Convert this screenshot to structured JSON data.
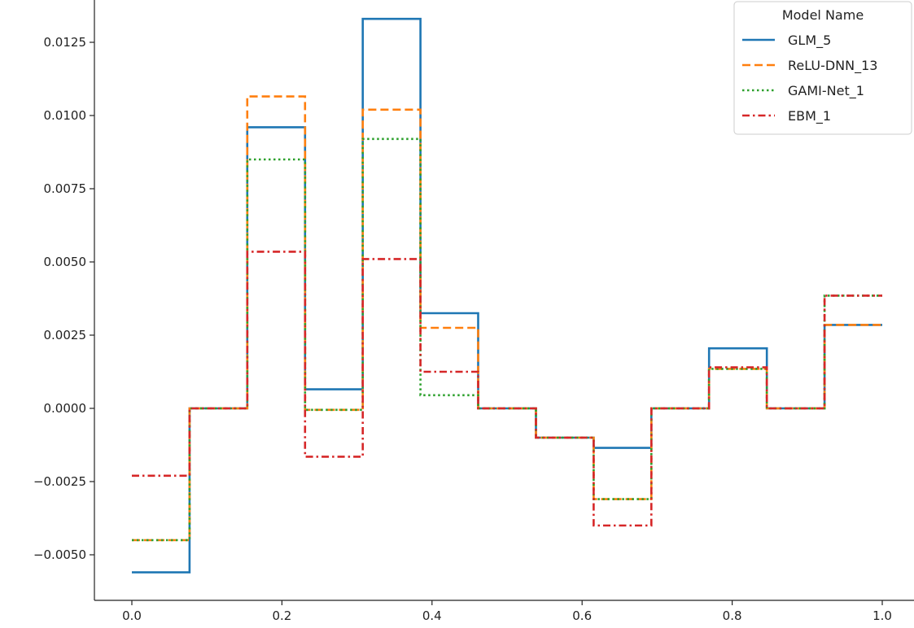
{
  "chart_data": {
    "type": "line",
    "title": "",
    "xlabel": "",
    "ylabel": "",
    "xlim": [
      -0.05,
      1.05
    ],
    "ylim": [
      -0.00645,
      0.01395
    ],
    "xticks": [
      0.0,
      0.2,
      0.4,
      0.6,
      0.8,
      1.0
    ],
    "xtick_labels": [
      "0.0",
      "0.2",
      "0.4",
      "0.6",
      "0.8",
      "1.0"
    ],
    "yticks": [
      -0.005,
      -0.0025,
      0.0,
      0.0025,
      0.005,
      0.0075,
      0.01,
      0.0125
    ],
    "ytick_labels": [
      "−0.0050",
      "−0.0025",
      "0.0000",
      "0.0025",
      "0.0050",
      "0.0075",
      "0.0100",
      "0.0125"
    ],
    "grid": false,
    "step_edges": [
      0.0,
      0.0769,
      0.1538,
      0.2308,
      0.3077,
      0.3846,
      0.4615,
      0.5385,
      0.6154,
      0.6923,
      0.7692,
      0.8462,
      0.9231,
      1.0
    ],
    "legend": {
      "title": "Model Name",
      "placement": "top-right"
    },
    "series": [
      {
        "name": "GLM_5",
        "color": "#1f77b4",
        "dash": "solid",
        "values": [
          -0.0056,
          0.0,
          0.0096,
          0.00065,
          0.0133,
          0.00325,
          0.0,
          -0.001,
          -0.00135,
          0.0,
          0.00205,
          0.0,
          0.00285
        ]
      },
      {
        "name": "ReLU-DNN_13",
        "color": "#ff7f0e",
        "dash": "dashed",
        "values": [
          -0.0045,
          0.0,
          0.01065,
          -5e-05,
          0.0102,
          0.00275,
          0.0,
          -0.001,
          -0.0031,
          0.0,
          0.00135,
          0.0,
          0.00285
        ]
      },
      {
        "name": "GAMI-Net_1",
        "color": "#2ca02c",
        "dash": "dotted",
        "values": [
          -0.0045,
          0.0,
          0.0085,
          -5e-05,
          0.0092,
          0.00045,
          0.0,
          -0.001,
          -0.0031,
          0.0,
          0.00135,
          0.0,
          0.00385
        ]
      },
      {
        "name": "EBM_1",
        "color": "#d62728",
        "dash": "dashdot",
        "values": [
          -0.0023,
          0.0,
          0.00535,
          -0.00165,
          0.0051,
          0.00125,
          0.0,
          -0.001,
          -0.004,
          0.0,
          0.0014,
          0.0,
          0.00385
        ]
      }
    ]
  }
}
